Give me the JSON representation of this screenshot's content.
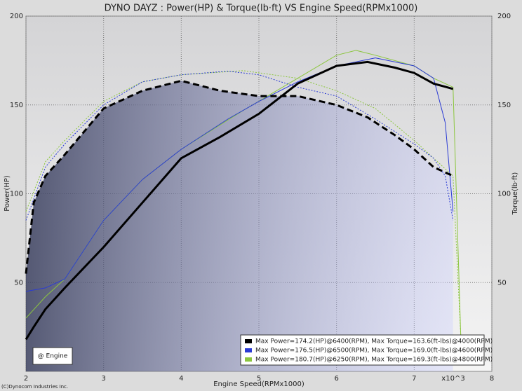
{
  "chart_data": {
    "type": "line",
    "title": "DYNO DAYZ : Power(HP) & Torque(lb·ft) VS Engine Speed(RPMx1000)",
    "x_label": "Engine Speed(RPMx1000)",
    "y_label": "Power(HP)",
    "y2_label": "Torque(lb·ft)",
    "x_multiplier": "x10^3",
    "box_label": "@ Engine",
    "credit": "(C)Dynocom Industries Inc.",
    "xlim": [
      2,
      8
    ],
    "xticks": [
      2,
      3,
      4,
      5,
      6,
      7,
      8
    ],
    "ylim": [
      0,
      200
    ],
    "yticks": [
      50,
      100,
      150,
      200
    ],
    "y2lim": [
      0,
      200
    ],
    "y2ticks": [
      50,
      100,
      150,
      200
    ],
    "grid": true,
    "series": [
      {
        "name": "Max Power=174.2(HP)@6400(RPM), Max Torque=163.6(ft-lbs)@4000(RPM)",
        "color": "#000000",
        "x": [
          2.0,
          2.1,
          2.25,
          2.5,
          3.0,
          3.5,
          4.0,
          4.5,
          5.0,
          5.5,
          6.0,
          6.4,
          6.75,
          7.0,
          7.25,
          7.5
        ],
        "power": [
          18,
          25,
          35,
          47,
          70,
          95,
          120,
          132,
          145,
          162,
          172,
          174.2,
          171,
          168,
          162,
          159
        ],
        "torque": [
          55,
          95,
          110,
          122,
          148,
          158,
          163.6,
          158,
          155,
          155,
          150,
          143,
          133,
          125,
          115,
          110
        ]
      },
      {
        "name": "Max Power=176.5(HP)@6500(RPM), Max Torque=169.0(ft-lbs)@4600(RPM)",
        "color": "#2b3bd4",
        "x": [
          2.0,
          2.25,
          2.5,
          3.0,
          3.5,
          4.0,
          4.6,
          5.0,
          5.5,
          6.0,
          6.5,
          7.0,
          7.25,
          7.4,
          7.5
        ],
        "power": [
          45,
          47,
          52,
          85,
          108,
          125,
          142,
          152,
          163,
          172,
          176.5,
          172,
          165,
          140,
          90
        ],
        "torque": [
          85,
          115,
          128,
          150,
          163,
          167,
          169,
          167,
          160,
          155,
          142,
          128,
          120,
          110,
          85
        ]
      },
      {
        "name": "Max Power=180.7(HP)@6250(RPM), Max Torque=169.3(ft-lbs)@4800(RPM)",
        "color": "#8cc63f",
        "x": [
          2.0,
          2.25,
          2.5,
          3.0,
          3.5,
          4.0,
          4.8,
          5.5,
          6.0,
          6.25,
          6.5,
          7.0,
          7.25,
          7.5,
          7.6
        ],
        "power": [
          30,
          42,
          52,
          85,
          108,
          125,
          147,
          165,
          178,
          180.7,
          178,
          172,
          165,
          160,
          20
        ],
        "torque": [
          90,
          118,
          130,
          152,
          163,
          167,
          169.3,
          165,
          158,
          153,
          148,
          130,
          120,
          110,
          20
        ]
      }
    ]
  }
}
